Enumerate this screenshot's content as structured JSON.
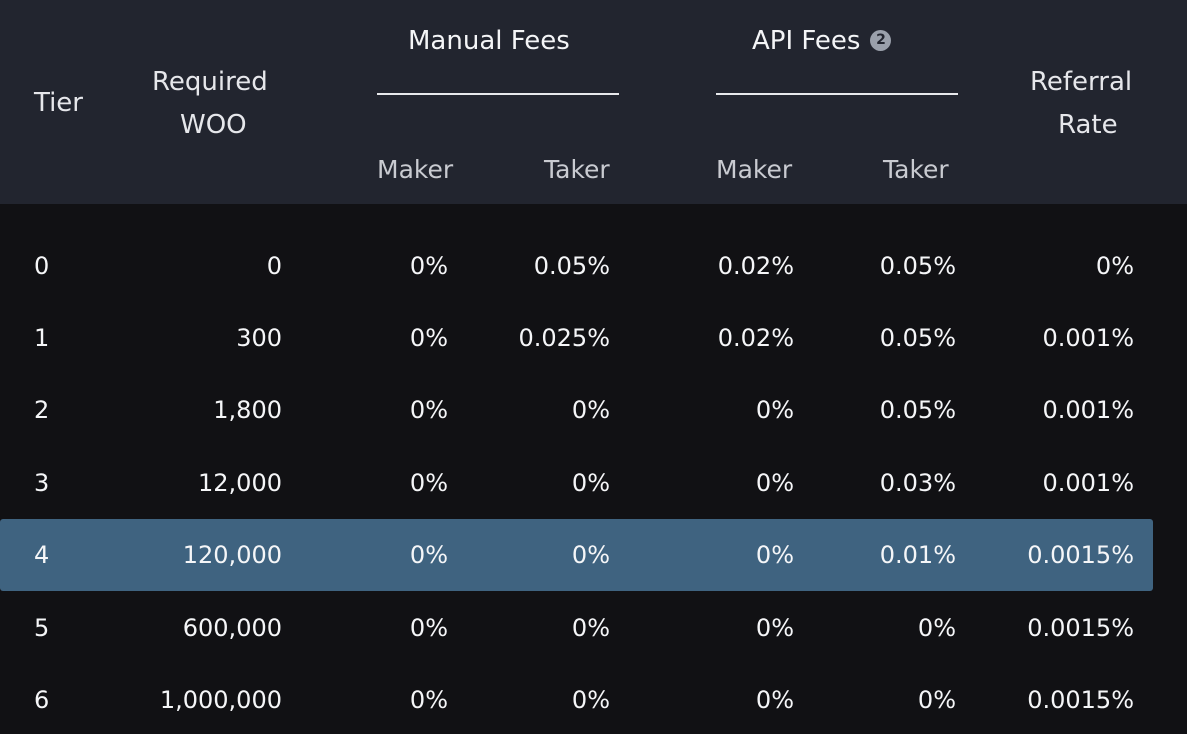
{
  "header": {
    "tier": "Tier",
    "required_line1": "Required",
    "required_line2": "WOO",
    "manual_fees": "Manual Fees",
    "api_fees": "API Fees",
    "api_info_badge": "2",
    "referral_line1": "Referral",
    "referral_line2": "Rate",
    "manual_maker": "Maker",
    "manual_taker": "Taker",
    "api_maker": "Maker",
    "api_taker": "Taker"
  },
  "rows": [
    {
      "tier": "0",
      "required": "0",
      "manual_maker": "0%",
      "manual_taker": "0.05%",
      "api_maker": "0.02%",
      "api_taker": "0.05%",
      "referral": "0%"
    },
    {
      "tier": "1",
      "required": "300",
      "manual_maker": "0%",
      "manual_taker": "0.025%",
      "api_maker": "0.02%",
      "api_taker": "0.05%",
      "referral": "0.001%"
    },
    {
      "tier": "2",
      "required": "1,800",
      "manual_maker": "0%",
      "manual_taker": "0%",
      "api_maker": "0%",
      "api_taker": "0.05%",
      "referral": "0.001%"
    },
    {
      "tier": "3",
      "required": "12,000",
      "manual_maker": "0%",
      "manual_taker": "0%",
      "api_maker": "0%",
      "api_taker": "0.03%",
      "referral": "0.001%"
    },
    {
      "tier": "4",
      "required": "120,000",
      "manual_maker": "0%",
      "manual_taker": "0%",
      "api_maker": "0%",
      "api_taker": "0.01%",
      "referral": "0.0015%",
      "highlighted": true
    },
    {
      "tier": "5",
      "required": "600,000",
      "manual_maker": "0%",
      "manual_taker": "0%",
      "api_maker": "0%",
      "api_taker": "0%",
      "referral": "0.0015%"
    },
    {
      "tier": "6",
      "required": "1,000,000",
      "manual_maker": "0%",
      "manual_taker": "0%",
      "api_maker": "0%",
      "api_taker": "0%",
      "referral": "0.0015%"
    }
  ],
  "colors": {
    "page_background": "#111114",
    "header_background": "#22252f",
    "highlight_row": "#3f6380",
    "text": "#f5f6f8",
    "info_badge": "#9aa0ab"
  },
  "icons": {
    "api_fees_info": "info-badge-icon"
  }
}
